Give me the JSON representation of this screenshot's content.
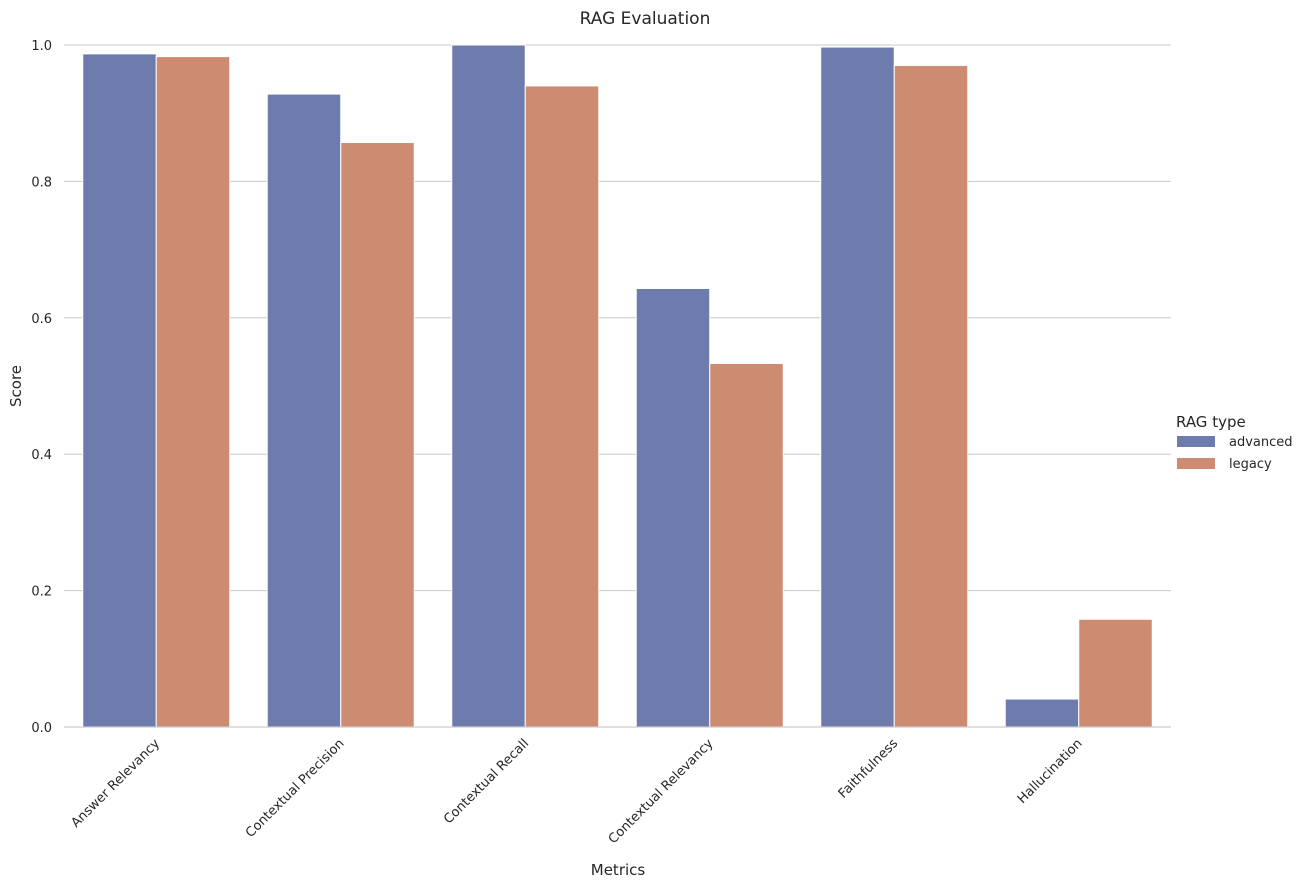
{
  "chart_data": {
    "type": "bar",
    "title": "RAG Evaluation",
    "xlabel": "Metrics",
    "ylabel": "Score",
    "categories": [
      "Answer Relevancy",
      "Contextual Precision",
      "Contextual Recall",
      "Contextual Relevancy",
      "Faithfulness",
      "Hallucination"
    ],
    "series": [
      {
        "name": "advanced",
        "color": "#6d7cad",
        "values": [
          0.987,
          0.928,
          1.0,
          0.643,
          0.997,
          0.041
        ]
      },
      {
        "name": "legacy",
        "color": "#cd8b72",
        "values": [
          0.983,
          0.857,
          0.94,
          0.533,
          0.97,
          0.158
        ]
      }
    ],
    "ylim": [
      0,
      1.0
    ],
    "yticks": [
      "0.0",
      "0.2",
      "0.4",
      "0.6",
      "0.8",
      "1.0"
    ],
    "grid": true,
    "legend": {
      "title": "RAG type",
      "placement": "right"
    }
  }
}
